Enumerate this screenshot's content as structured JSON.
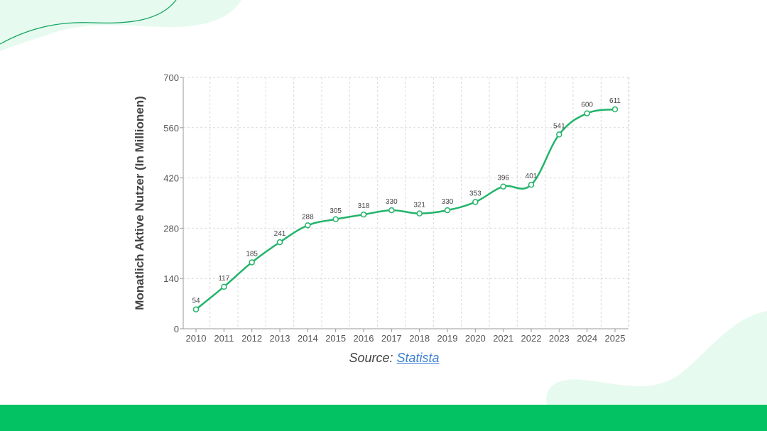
{
  "chart_data": {
    "type": "line",
    "x": [
      "2010",
      "2011",
      "2012",
      "2013",
      "2014",
      "2015",
      "2016",
      "2017",
      "2018",
      "2019",
      "2020",
      "2021",
      "2022",
      "2023",
      "2024",
      "2025"
    ],
    "values": [
      54,
      117,
      185,
      241,
      288,
      305,
      318,
      330,
      321,
      330,
      353,
      396,
      401,
      541,
      600,
      611
    ],
    "ylabel": "Monatlich Aktive Nutzer (In Millionen)",
    "xlabel": "",
    "ylim": [
      0,
      700
    ],
    "yticks": [
      0,
      140,
      280,
      420,
      560,
      700
    ],
    "grid": true,
    "line_color": "#22b46a"
  },
  "source": {
    "prefix": "Source:",
    "link_text": "Statista"
  },
  "colors": {
    "accent": "#02c263",
    "blob": "#e6faf0"
  }
}
